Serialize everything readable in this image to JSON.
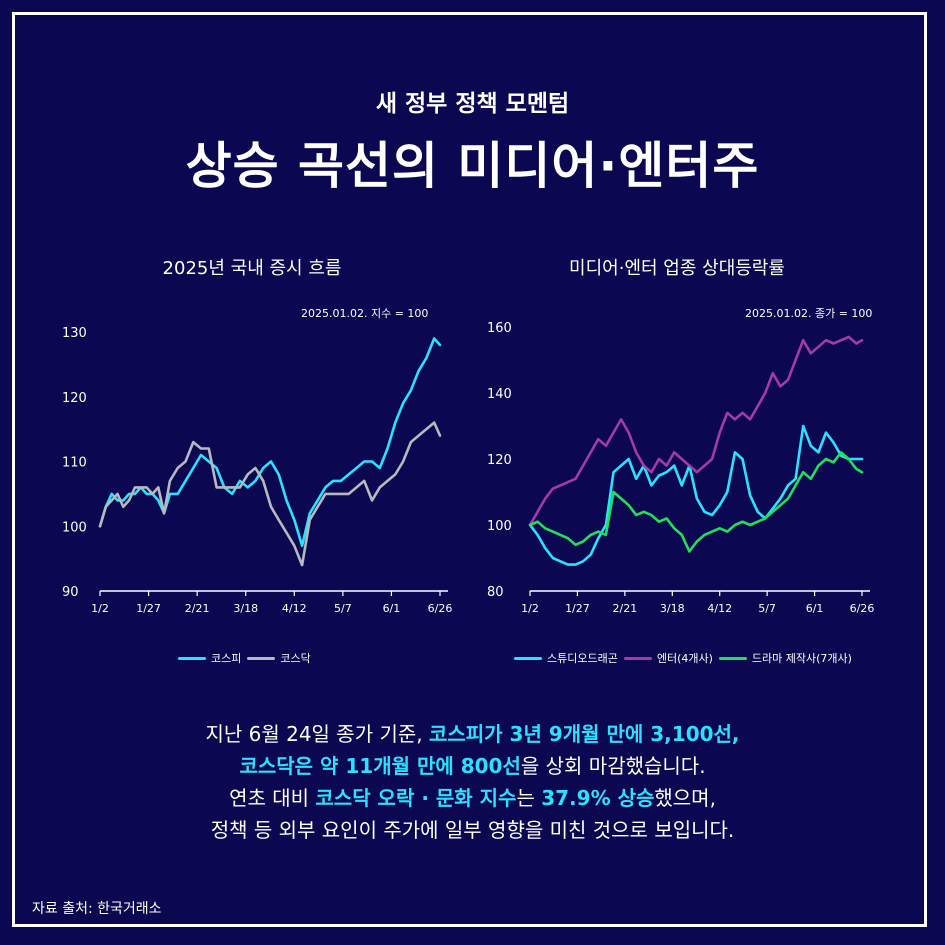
{
  "header": {
    "subtitle": "새 정부 정책 모멘텀",
    "title": "상승 곡선의 미디어·엔터주"
  },
  "charts": {
    "left_title": "2025년 국내 증시 흐름",
    "left_note": "2025.01.02. 지수 = 100",
    "right_title": "미디어·엔터 업종 상대등락률",
    "right_note": "2025.01.02. 종가 = 100"
  },
  "body": {
    "line1_a": "지난 6월 24일 종가 기준, ",
    "line1_b": "코스피가 3년 9개월 만에 3,100선,",
    "line2_a": "코스닥은 약 11개월 만에 800선",
    "line2_b": "을 상회 마감했습니다.",
    "line3_a": "연초 대비 ",
    "line3_b": "코스닥 오락 · 문화 지수",
    "line3_c": "는 ",
    "line3_d": "37.9% 상승",
    "line3_e": "했으며,",
    "line4": "정책 등 외부 요인이 주가에 일부 영향을 미친 것으로 보입니다."
  },
  "source": "자료 출처: 한국거래소",
  "colors": {
    "background": "#0b0750",
    "cyan": "#28e3ff",
    "gray": "#b8b8c0",
    "purple": "#a23aa8",
    "green": "#1fe05a"
  },
  "chart_data": [
    {
      "type": "line",
      "title": "2025년 국내 증시 흐름",
      "annotation": "2025.01.02. 지수 = 100",
      "x_ticks": [
        "1/2",
        "1/27",
        "2/21",
        "3/18",
        "4/12",
        "5/7",
        "6/1",
        "6/26"
      ],
      "y_ticks": [
        90,
        100,
        110,
        120,
        130
      ],
      "ylim": [
        90,
        130
      ],
      "x_index_range": [
        0,
        175
      ],
      "legend_position": "bottom",
      "series": [
        {
          "name": "코스피",
          "color": "#28e3ff",
          "x": [
            0,
            3,
            6,
            9,
            12,
            15,
            18,
            21,
            24,
            27,
            30,
            33,
            36,
            40,
            44,
            48,
            52,
            56,
            60,
            64,
            68,
            72,
            76,
            80,
            84,
            88,
            92,
            96,
            100,
            104,
            108,
            112,
            116,
            120,
            124,
            128,
            132,
            136,
            140,
            144,
            148,
            152,
            156,
            160,
            164,
            168,
            172,
            175
          ],
          "y": [
            100,
            103,
            105,
            104,
            104,
            105,
            105,
            106,
            105,
            105,
            104,
            102,
            105,
            105,
            107,
            109,
            111,
            110,
            109,
            106,
            105,
            107,
            106,
            107,
            109,
            110,
            108,
            104,
            101,
            97,
            102,
            104,
            106,
            107,
            107,
            108,
            109,
            110,
            110,
            109,
            112,
            116,
            119,
            121,
            124,
            126,
            129,
            128
          ]
        },
        {
          "name": "코스닥",
          "color": "#b8b8c0",
          "x": [
            0,
            3,
            6,
            9,
            12,
            15,
            18,
            21,
            24,
            27,
            30,
            33,
            36,
            40,
            44,
            48,
            52,
            56,
            60,
            64,
            68,
            72,
            76,
            80,
            84,
            88,
            92,
            96,
            100,
            104,
            108,
            112,
            116,
            120,
            124,
            128,
            132,
            136,
            140,
            144,
            148,
            152,
            156,
            160,
            164,
            168,
            172,
            175
          ],
          "y": [
            100,
            103,
            104,
            105,
            103,
            104,
            106,
            106,
            106,
            105,
            106,
            102,
            107,
            109,
            110,
            113,
            112,
            112,
            106,
            106,
            106,
            106,
            108,
            109,
            107,
            103,
            101,
            99,
            97,
            94,
            101,
            103,
            105,
            105,
            105,
            105,
            106,
            107,
            104,
            106,
            107,
            108,
            110,
            113,
            114,
            115,
            116,
            114
          ]
        }
      ]
    },
    {
      "type": "line",
      "title": "미디어·엔터 업종 상대등락률",
      "annotation": "2025.01.02. 종가 = 100",
      "x_ticks": [
        "1/2",
        "1/27",
        "2/21",
        "3/18",
        "4/12",
        "5/7",
        "6/1",
        "6/26"
      ],
      "y_ticks": [
        80,
        100,
        120,
        140,
        160
      ],
      "ylim": [
        80,
        160
      ],
      "x_index_range": [
        0,
        175
      ],
      "legend_position": "bottom",
      "series": [
        {
          "name": "스튜디오드래곤",
          "color": "#28e3ff",
          "x": [
            0,
            4,
            8,
            12,
            16,
            20,
            24,
            28,
            32,
            36,
            40,
            44,
            48,
            52,
            56,
            60,
            64,
            68,
            72,
            76,
            80,
            84,
            88,
            92,
            96,
            100,
            104,
            108,
            112,
            116,
            120,
            124,
            128,
            132,
            136,
            140,
            144,
            148,
            152,
            156,
            160,
            164,
            168,
            172,
            175
          ],
          "y": [
            100,
            97,
            93,
            90,
            89,
            88,
            88,
            89,
            91,
            96,
            100,
            116,
            118,
            120,
            114,
            118,
            112,
            115,
            116,
            118,
            112,
            118,
            108,
            104,
            103,
            106,
            110,
            122,
            120,
            109,
            104,
            102,
            105,
            108,
            112,
            114,
            130,
            124,
            122,
            128,
            125,
            121,
            120,
            120,
            120
          ]
        },
        {
          "name": "엔터(4개사)",
          "color": "#a23aa8",
          "x": [
            0,
            4,
            8,
            12,
            16,
            20,
            24,
            28,
            32,
            36,
            40,
            44,
            48,
            52,
            56,
            60,
            64,
            68,
            72,
            76,
            80,
            84,
            88,
            92,
            96,
            100,
            104,
            108,
            112,
            116,
            120,
            124,
            128,
            132,
            136,
            140,
            144,
            148,
            152,
            156,
            160,
            164,
            168,
            172,
            175
          ],
          "y": [
            100,
            104,
            108,
            111,
            112,
            113,
            114,
            118,
            122,
            126,
            124,
            128,
            132,
            128,
            122,
            118,
            116,
            120,
            118,
            122,
            120,
            118,
            116,
            118,
            120,
            128,
            134,
            132,
            134,
            132,
            136,
            140,
            146,
            142,
            144,
            150,
            156,
            152,
            154,
            156,
            155,
            156,
            157,
            155,
            156
          ]
        },
        {
          "name": "드라마 제작사(7개사)",
          "color": "#1fe05a",
          "x": [
            0,
            4,
            8,
            12,
            16,
            20,
            24,
            28,
            32,
            36,
            40,
            44,
            48,
            52,
            56,
            60,
            64,
            68,
            72,
            76,
            80,
            84,
            88,
            92,
            96,
            100,
            104,
            108,
            112,
            116,
            120,
            124,
            128,
            132,
            136,
            140,
            144,
            148,
            152,
            156,
            160,
            164,
            168,
            172,
            175
          ],
          "y": [
            100,
            101,
            99,
            98,
            97,
            96,
            94,
            95,
            97,
            98,
            97,
            110,
            108,
            106,
            103,
            104,
            103,
            101,
            102,
            99,
            97,
            92,
            95,
            97,
            98,
            99,
            98,
            100,
            101,
            100,
            101,
            102,
            104,
            106,
            108,
            112,
            116,
            114,
            118,
            120,
            119,
            122,
            120,
            117,
            116
          ]
        }
      ]
    }
  ]
}
